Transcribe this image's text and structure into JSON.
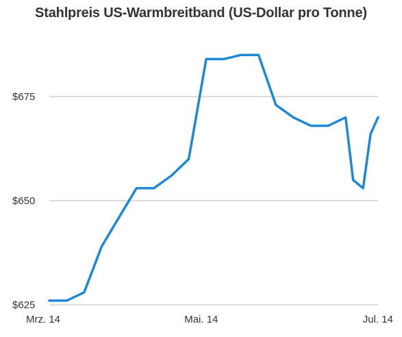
{
  "chart_data": {
    "type": "line",
    "title": "Stahlpreis US-Warmbreitband (US-Dollar pro Tonne)",
    "xlabel": "",
    "ylabel": "",
    "x_ticks": [
      "Mrz. 14",
      "Mai. 14",
      "Jul. 14"
    ],
    "y_ticks": [
      "$625",
      "$650",
      "$675"
    ],
    "ylim": [
      625,
      692
    ],
    "grid": "horizontal",
    "legend": "none",
    "line_color": "#1f88d4",
    "series": [
      {
        "x": [
          "2014-03-01",
          "2014-03-08",
          "2014-03-15",
          "2014-03-22",
          "2014-03-29",
          "2014-04-05",
          "2014-04-12",
          "2014-04-19",
          "2014-04-26",
          "2014-05-03",
          "2014-05-10",
          "2014-05-17",
          "2014-05-24",
          "2014-05-31",
          "2014-06-07",
          "2014-06-14",
          "2014-06-21",
          "2014-06-28",
          "2014-07-01",
          "2014-07-05",
          "2014-07-08",
          "2014-07-11"
        ],
        "values": [
          626,
          626,
          628,
          639,
          646,
          653,
          653,
          656,
          660,
          684,
          684,
          685,
          685,
          673,
          670,
          668,
          668,
          670,
          655,
          653,
          666,
          670
        ]
      }
    ]
  }
}
